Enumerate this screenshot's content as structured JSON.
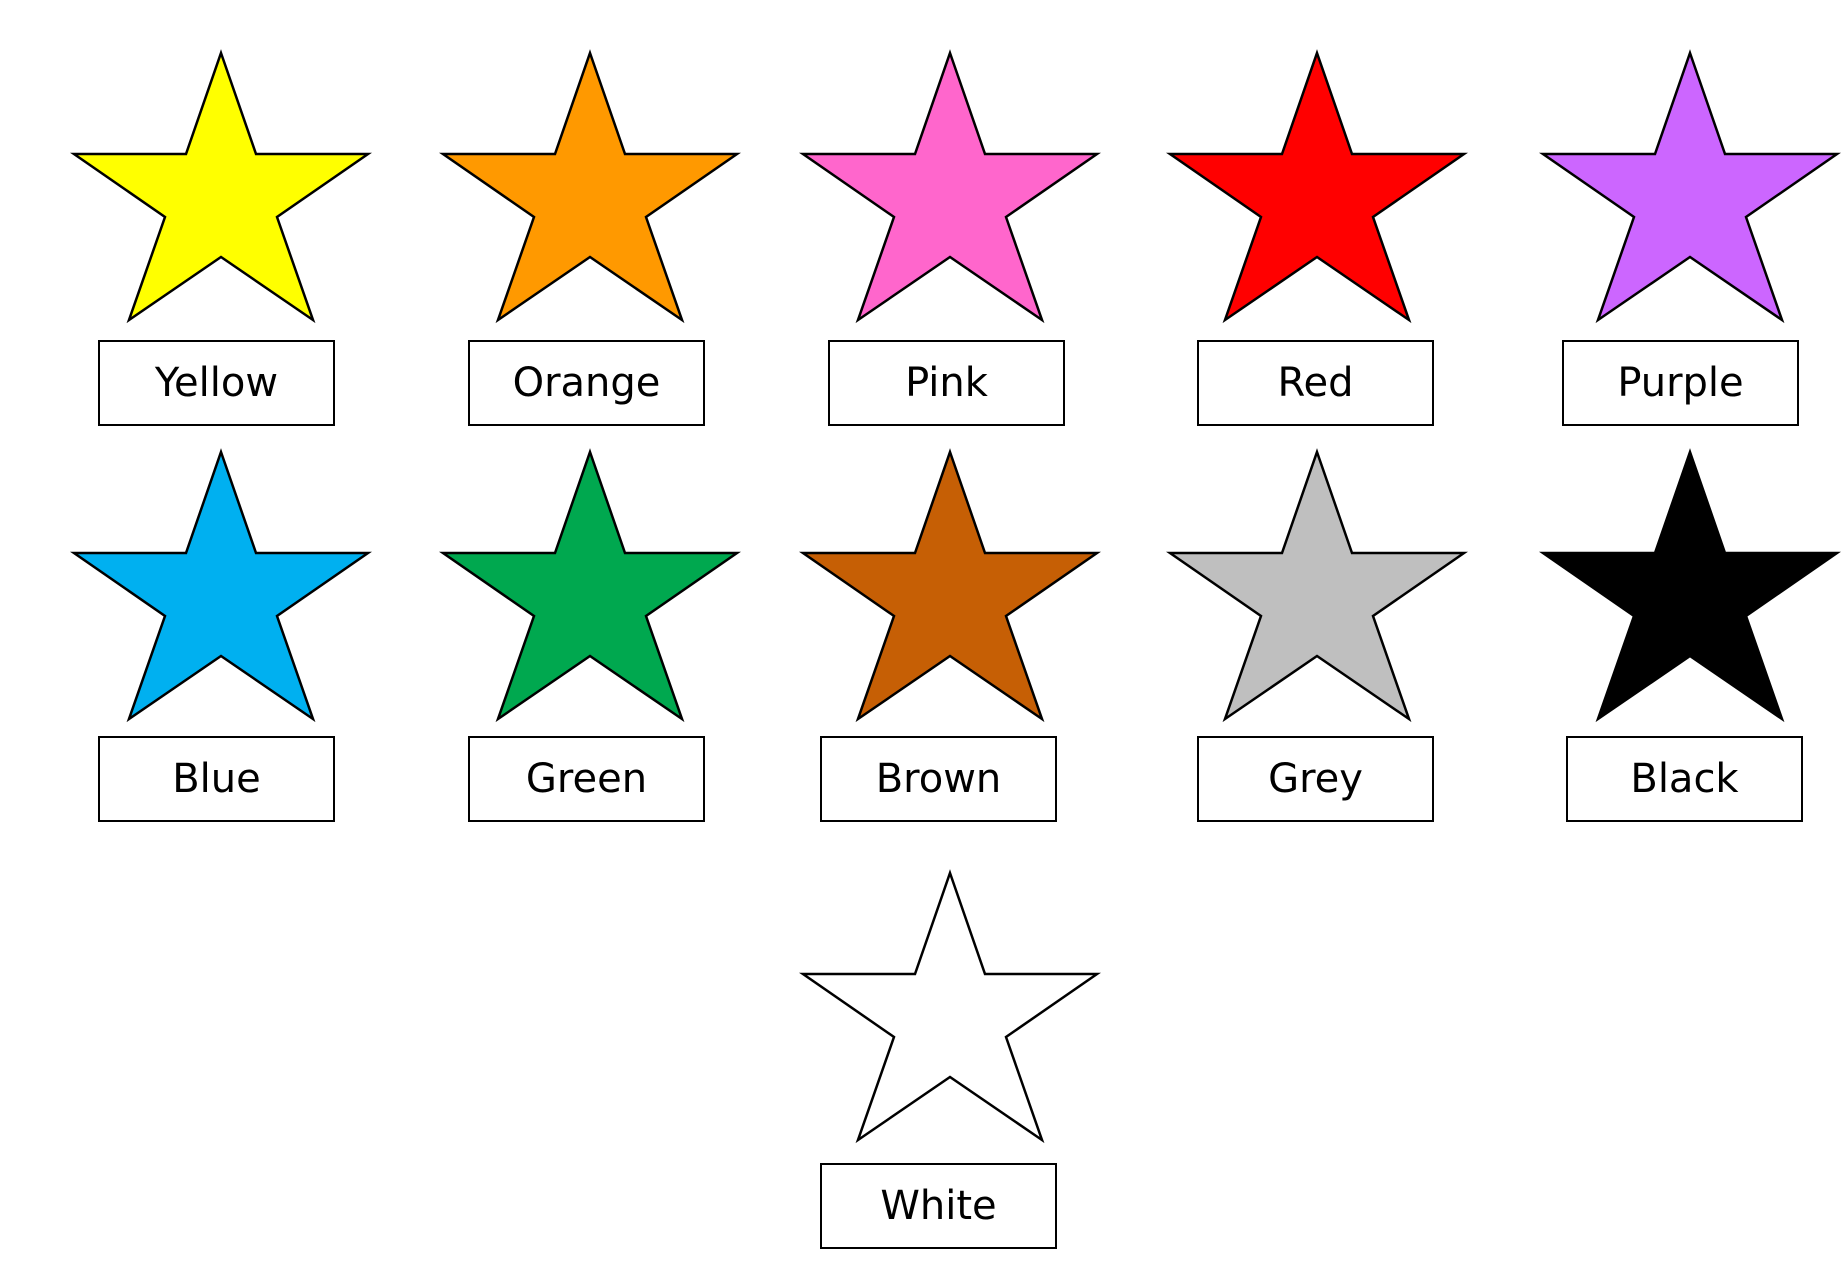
{
  "stars": [
    {
      "id": "yellow",
      "label": "Yellow",
      "color": "#ffff00"
    },
    {
      "id": "orange",
      "label": "Orange",
      "color": "#ff9900"
    },
    {
      "id": "pink",
      "label": "Pink",
      "color": "#ff66cc"
    },
    {
      "id": "red",
      "label": "Red",
      "color": "#ff0000"
    },
    {
      "id": "purple",
      "label": "Purple",
      "color": "#cc66ff"
    },
    {
      "id": "blue",
      "label": "Blue",
      "color": "#00b0f0"
    },
    {
      "id": "green",
      "label": "Green",
      "color": "#00a84f"
    },
    {
      "id": "brown",
      "label": "Brown",
      "color": "#c65f05"
    },
    {
      "id": "grey",
      "label": "Grey",
      "color": "#bfbfbf"
    },
    {
      "id": "black",
      "label": "Black",
      "color": "#000000"
    },
    {
      "id": "white",
      "label": "White",
      "color": "#ffffff"
    }
  ]
}
